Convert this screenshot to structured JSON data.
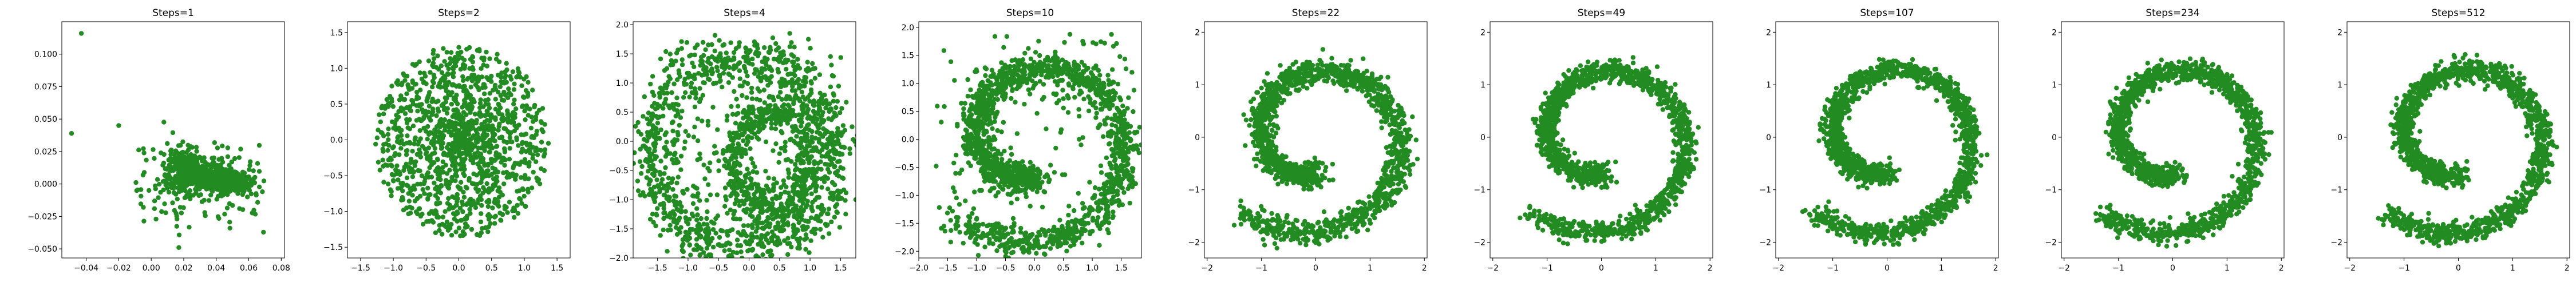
{
  "figure": {
    "marker_color": "#228b22",
    "axes_color": "#000000",
    "background": "#ffffff"
  },
  "chart_data": [
    {
      "type": "scatter",
      "title": "Steps=1",
      "shape": "collapsed-cloud",
      "xlim": [
        -0.055,
        0.082
      ],
      "ylim": [
        -0.057,
        0.125
      ],
      "xticks": [
        -0.04,
        -0.02,
        0.0,
        0.02,
        0.04,
        0.06,
        0.08
      ],
      "xtick_labels": [
        "−0.04",
        "−0.02",
        "0.00",
        "0.02",
        "0.04",
        "0.06",
        "0.08"
      ],
      "yticks": [
        -0.05,
        -0.025,
        0.0,
        0.025,
        0.05,
        0.075,
        0.1
      ],
      "ytick_labels": [
        "−0.050",
        "−0.025",
        "0.000",
        "0.025",
        "0.050",
        "0.075",
        "0.100"
      ],
      "grid": false
    },
    {
      "type": "scatter",
      "title": "Steps=2",
      "shape": "blob",
      "xlim": [
        -1.7,
        1.7
      ],
      "ylim": [
        -1.65,
        1.65
      ],
      "xticks": [
        -1.5,
        -1.0,
        -0.5,
        0.0,
        0.5,
        1.0,
        1.5
      ],
      "xtick_labels": [
        "−1.5",
        "−1.0",
        "−0.5",
        "0.0",
        "0.5",
        "1.0",
        "1.5"
      ],
      "yticks": [
        -1.5,
        -1.0,
        -0.5,
        0.0,
        0.5,
        1.0,
        1.5
      ],
      "ytick_labels": [
        "−1.5",
        "−1.0",
        "−0.5",
        "0.0",
        "0.5",
        "1.0",
        "1.5"
      ],
      "grid": false
    },
    {
      "type": "scatter",
      "title": "Steps=4",
      "shape": "ring",
      "xlim": [
        -1.9,
        1.75
      ],
      "ylim": [
        -2.0,
        2.05
      ],
      "xticks": [
        -1.5,
        -1.0,
        -0.5,
        0.0,
        0.5,
        1.0,
        1.5
      ],
      "xtick_labels": [
        "−1.5",
        "−1.0",
        "−0.5",
        "0.0",
        "0.5",
        "1.0",
        "1.5"
      ],
      "yticks": [
        -2.0,
        -1.5,
        -1.0,
        -0.5,
        0.0,
        0.5,
        1.0,
        1.5,
        2.0
      ],
      "ytick_labels": [
        "−2.0",
        "−1.5",
        "−1.0",
        "−0.5",
        "0.0",
        "0.5",
        "1.0",
        "1.5",
        "2.0"
      ],
      "grid": false
    },
    {
      "type": "scatter",
      "title": "Steps=10",
      "shape": "spiral",
      "xlim": [
        -2.0,
        1.85
      ],
      "ylim": [
        -2.12,
        2.1
      ],
      "xticks": [
        -2.0,
        -1.5,
        -1.0,
        -0.5,
        0.0,
        0.5,
        1.0,
        1.5
      ],
      "xtick_labels": [
        "−2.0",
        "−1.5",
        "−1.0",
        "−0.5",
        "0.0",
        "0.5",
        "1.0",
        "1.5"
      ],
      "yticks": [
        -2.0,
        -1.5,
        -1.0,
        -0.5,
        0.0,
        0.5,
        1.0,
        1.5,
        2.0
      ],
      "ytick_labels": [
        "−2.0",
        "−1.5",
        "−1.0",
        "−0.5",
        "0.0",
        "0.5",
        "1.0",
        "1.5",
        "2.0"
      ],
      "grid": false
    },
    {
      "type": "scatter",
      "title": "Steps=22",
      "shape": "spiral",
      "xlim": [
        -2.05,
        2.05
      ],
      "ylim": [
        -2.3,
        2.2
      ],
      "xticks": [
        -2,
        -1,
        0,
        1,
        2
      ],
      "xtick_labels": [
        "−2",
        "−1",
        "0",
        "1",
        "2"
      ],
      "yticks": [
        -2,
        -1,
        0,
        1,
        2
      ],
      "ytick_labels": [
        "−2",
        "−1",
        "0",
        "1",
        "2"
      ],
      "grid": false
    },
    {
      "type": "scatter",
      "title": "Steps=49",
      "shape": "spiral",
      "xlim": [
        -2.05,
        2.05
      ],
      "ylim": [
        -2.3,
        2.2
      ],
      "xticks": [
        -2,
        -1,
        0,
        1,
        2
      ],
      "xtick_labels": [
        "−2",
        "−1",
        "0",
        "1",
        "2"
      ],
      "yticks": [
        -2,
        -1,
        0,
        1,
        2
      ],
      "ytick_labels": [
        "−2",
        "−1",
        "0",
        "1",
        "2"
      ],
      "grid": false
    },
    {
      "type": "scatter",
      "title": "Steps=107",
      "shape": "spiral",
      "xlim": [
        -2.05,
        2.05
      ],
      "ylim": [
        -2.3,
        2.2
      ],
      "xticks": [
        -2,
        -1,
        0,
        1,
        2
      ],
      "xtick_labels": [
        "−2",
        "−1",
        "0",
        "1",
        "2"
      ],
      "yticks": [
        -2,
        -1,
        0,
        1,
        2
      ],
      "ytick_labels": [
        "−2",
        "−1",
        "0",
        "1",
        "2"
      ],
      "grid": false
    },
    {
      "type": "scatter",
      "title": "Steps=234",
      "shape": "spiral",
      "xlim": [
        -2.05,
        2.05
      ],
      "ylim": [
        -2.3,
        2.2
      ],
      "xticks": [
        -2,
        -1,
        0,
        1,
        2
      ],
      "xtick_labels": [
        "−2",
        "−1",
        "0",
        "1",
        "2"
      ],
      "yticks": [
        -2,
        -1,
        0,
        1,
        2
      ],
      "ytick_labels": [
        "−2",
        "−1",
        "0",
        "1",
        "2"
      ],
      "grid": false
    },
    {
      "type": "scatter",
      "title": "Steps=512",
      "shape": "spiral",
      "xlim": [
        -2.05,
        2.05
      ],
      "ylim": [
        -2.3,
        2.2
      ],
      "xticks": [
        -2,
        -1,
        0,
        1,
        2
      ],
      "xtick_labels": [
        "−2",
        "−1",
        "0",
        "1",
        "2"
      ],
      "yticks": [
        -2,
        -1,
        0,
        1,
        2
      ],
      "ytick_labels": [
        "−2",
        "−1",
        "0",
        "1",
        "2"
      ],
      "grid": false
    }
  ]
}
